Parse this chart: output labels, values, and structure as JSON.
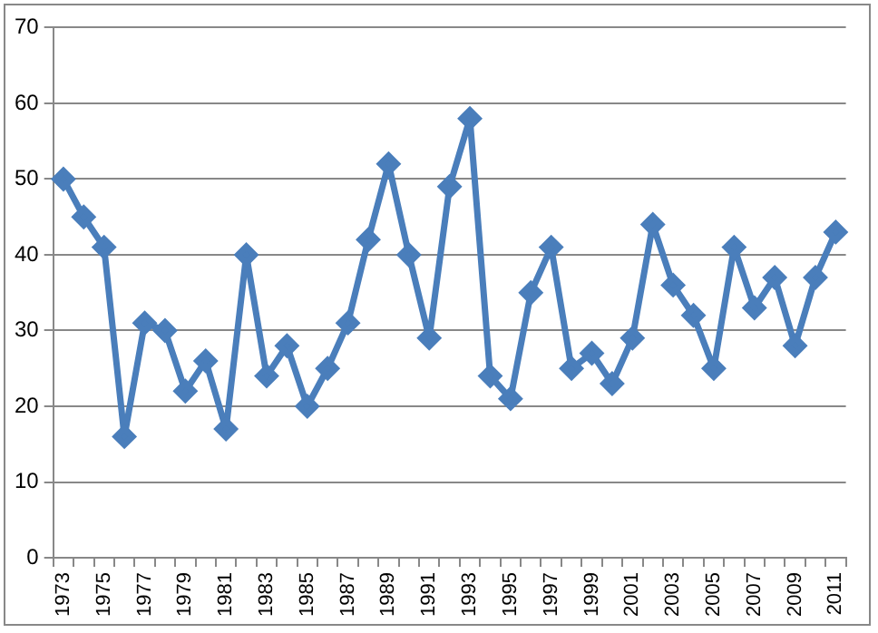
{
  "chart_data": {
    "type": "line",
    "categories": [
      "1973",
      null,
      "1975",
      null,
      "1977",
      null,
      "1979",
      null,
      "1981",
      null,
      "1983",
      null,
      "1985",
      null,
      "1987",
      null,
      "1989",
      null,
      "1991",
      null,
      "1993",
      null,
      "1995",
      null,
      "1997",
      null,
      "1999",
      null,
      "2001",
      null,
      "2003",
      null,
      "2005",
      null,
      "2007",
      null,
      "2009",
      null,
      "2011"
    ],
    "series": [
      {
        "color": "#4a7ebb",
        "values": [
          50,
          45,
          41,
          16,
          31,
          30,
          22,
          26,
          17,
          40,
          24,
          28,
          20,
          25,
          31,
          42,
          52,
          40,
          29,
          49,
          58,
          24,
          21,
          35,
          41,
          25,
          27,
          23,
          29,
          44,
          36,
          32,
          25,
          41,
          33,
          37,
          28,
          37,
          43
        ]
      }
    ],
    "ylim": [
      0,
      70
    ],
    "yticks": [
      0,
      10,
      20,
      30,
      40,
      50,
      60,
      70
    ],
    "grid": "y",
    "legend": false,
    "marker": "diamond",
    "line_style": "solid"
  }
}
